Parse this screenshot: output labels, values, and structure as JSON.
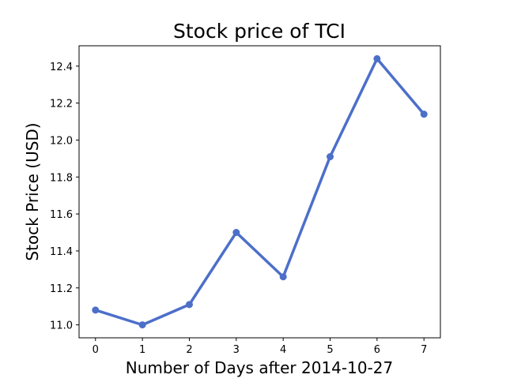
{
  "chart_data": {
    "type": "line",
    "title": "Stock price of TCI",
    "xlabel": "Number of Days after 2014-10-27",
    "ylabel": "Stock Price (USD)",
    "x": [
      0,
      1,
      2,
      3,
      4,
      5,
      6,
      7
    ],
    "series": [
      {
        "values": [
          11.08,
          11.0,
          11.11,
          11.5,
          11.26,
          11.91,
          12.44,
          12.14
        ],
        "color": "#4c6fc9",
        "marker": "circle"
      }
    ],
    "xlim": [
      -0.35,
      7.35
    ],
    "ylim": [
      10.93,
      12.51
    ],
    "xticks": [
      0,
      1,
      2,
      3,
      4,
      5,
      6,
      7
    ],
    "yticks": [
      11.0,
      11.2,
      11.4,
      11.6,
      11.8,
      12.0,
      12.2,
      12.4
    ],
    "xtick_labels": [
      "0",
      "1",
      "2",
      "3",
      "4",
      "5",
      "6",
      "7"
    ],
    "ytick_labels": [
      "11.0",
      "11.2",
      "11.4",
      "11.6",
      "11.8",
      "12.0",
      "12.2",
      "12.4"
    ],
    "grid": false,
    "legend": "none"
  }
}
